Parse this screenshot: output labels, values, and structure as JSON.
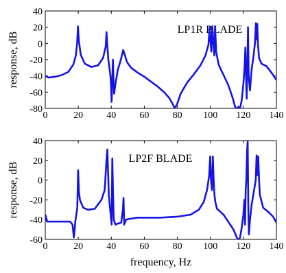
{
  "chart_data": [
    {
      "type": "line",
      "title": "LP1R BLADE",
      "xlabel": "",
      "ylabel": "response, dB",
      "xlim": [
        0,
        140
      ],
      "ylim": [
        -80,
        40
      ],
      "xticks": [
        0,
        20,
        40,
        60,
        80,
        100,
        120,
        140
      ],
      "yticks": [
        40,
        20,
        0,
        -20,
        -40,
        -60,
        -80
      ],
      "grid": false,
      "color": "#1414e6",
      "series": [
        {
          "x": [
            0,
            2,
            6,
            10,
            14,
            17,
            18.5,
            19.3,
            19.8,
            20.3,
            21.5,
            24,
            28,
            32,
            35,
            36.6,
            37.1,
            37.5,
            38.2,
            39,
            39.5,
            39.8,
            40.2,
            40.6,
            41.0,
            41.3,
            41.7,
            42.5,
            44,
            45.5,
            46.5,
            47.2,
            48,
            49.5,
            52,
            56,
            60,
            64,
            68,
            72,
            75,
            77,
            78.5,
            80,
            82,
            86,
            90,
            94,
            97,
            98.8,
            99.6,
            100.1,
            100.6,
            101.2,
            101.8,
            102.4,
            102.9,
            103.5,
            105,
            108,
            111,
            113.5,
            115,
            116,
            117,
            118,
            119,
            120,
            120.7,
            121.2,
            121.6,
            122.0,
            122.4,
            122.8,
            123.2,
            124,
            125,
            126,
            127,
            127.6,
            128.0,
            128.4,
            128.8,
            129.5,
            131,
            134,
            137,
            140
          ],
          "y": [
            -40,
            -42,
            -41,
            -39,
            -35,
            -26,
            -15,
            0,
            21,
            4,
            -14,
            -25,
            -29,
            -27,
            -18,
            -4,
            14,
            0,
            -20,
            -32,
            -40,
            -50,
            -72,
            -45,
            -20,
            -42,
            -62,
            -50,
            -32,
            -22,
            -14,
            -8,
            -13,
            -23,
            -30,
            -36,
            -41,
            -47,
            -53,
            -60,
            -67,
            -74,
            -80,
            -74,
            -62,
            -48,
            -38,
            -27,
            -15,
            -2,
            20,
            2,
            -10,
            21,
            2,
            -15,
            21,
            -10,
            -26,
            -39,
            -52,
            -67,
            -78,
            -81,
            -78,
            -80,
            -70,
            -50,
            -30,
            -5,
            -40,
            -68,
            -28,
            20,
            -40,
            -58,
            -32,
            -18,
            0,
            25,
            5,
            24,
            0,
            -18,
            -25,
            -28,
            -36,
            -45
          ]
        }
      ]
    },
    {
      "type": "line",
      "title": "LP2F BLADE",
      "xlabel": "frequency, Hz",
      "ylabel": "response, dB",
      "xlim": [
        0,
        140
      ],
      "ylim": [
        -60,
        40
      ],
      "xticks": [
        0,
        20,
        40,
        60,
        80,
        100,
        120,
        140
      ],
      "yticks": [
        40,
        20,
        0,
        -20,
        -40,
        -60
      ],
      "grid": false,
      "color": "#1414e6",
      "series": [
        {
          "x": [
            0,
            0.4,
            1.0,
            4,
            10,
            15,
            16.5,
            17.3,
            17.8,
            18.2,
            18.8,
            19.4,
            19.9,
            20.4,
            21,
            23,
            26,
            30,
            34,
            36,
            37.0,
            37.6,
            38.0,
            38.5,
            39.2,
            39.8,
            40.2,
            40.6,
            41.0,
            41.5,
            42.5,
            44,
            46,
            47.0,
            47.4,
            47.8,
            49,
            52,
            56,
            60,
            70,
            80,
            88,
            93,
            96,
            98,
            99.3,
            99.9,
            100.4,
            101.0,
            101.5,
            102.0,
            102.5,
            103,
            104,
            106,
            108,
            110,
            112,
            114,
            116,
            117,
            118,
            119,
            120,
            120.6,
            121.0,
            121.4,
            121.8,
            122.2,
            122.6,
            123.0,
            123.4,
            124,
            125,
            126,
            127.5,
            128.0,
            128.5,
            129.0,
            129.5,
            130,
            132,
            135,
            138,
            140
          ],
          "y": [
            -35,
            -37,
            -42,
            -42,
            -42,
            -42,
            -45,
            -58,
            -50,
            -42,
            -35,
            -28,
            10,
            -12,
            -20,
            -28,
            -30,
            -29,
            -20,
            -10,
            18,
            31,
            10,
            -15,
            -28,
            -38,
            -45,
            22,
            -10,
            -40,
            -45,
            -44,
            -43,
            -30,
            -18,
            -45,
            -40,
            -39,
            -38,
            -38,
            -38,
            -37,
            -35,
            -30,
            -22,
            -10,
            5,
            24,
            0,
            -10,
            24,
            0,
            -15,
            -22,
            -29,
            -32,
            -35,
            -40,
            -45,
            -50,
            -58,
            -61,
            -58,
            -48,
            -35,
            -20,
            -45,
            -10,
            1,
            27,
            40,
            -30,
            -55,
            -40,
            -25,
            -15,
            0,
            25,
            5,
            24,
            0,
            -15,
            -28,
            -32,
            -37,
            -43
          ]
        }
      ]
    }
  ]
}
